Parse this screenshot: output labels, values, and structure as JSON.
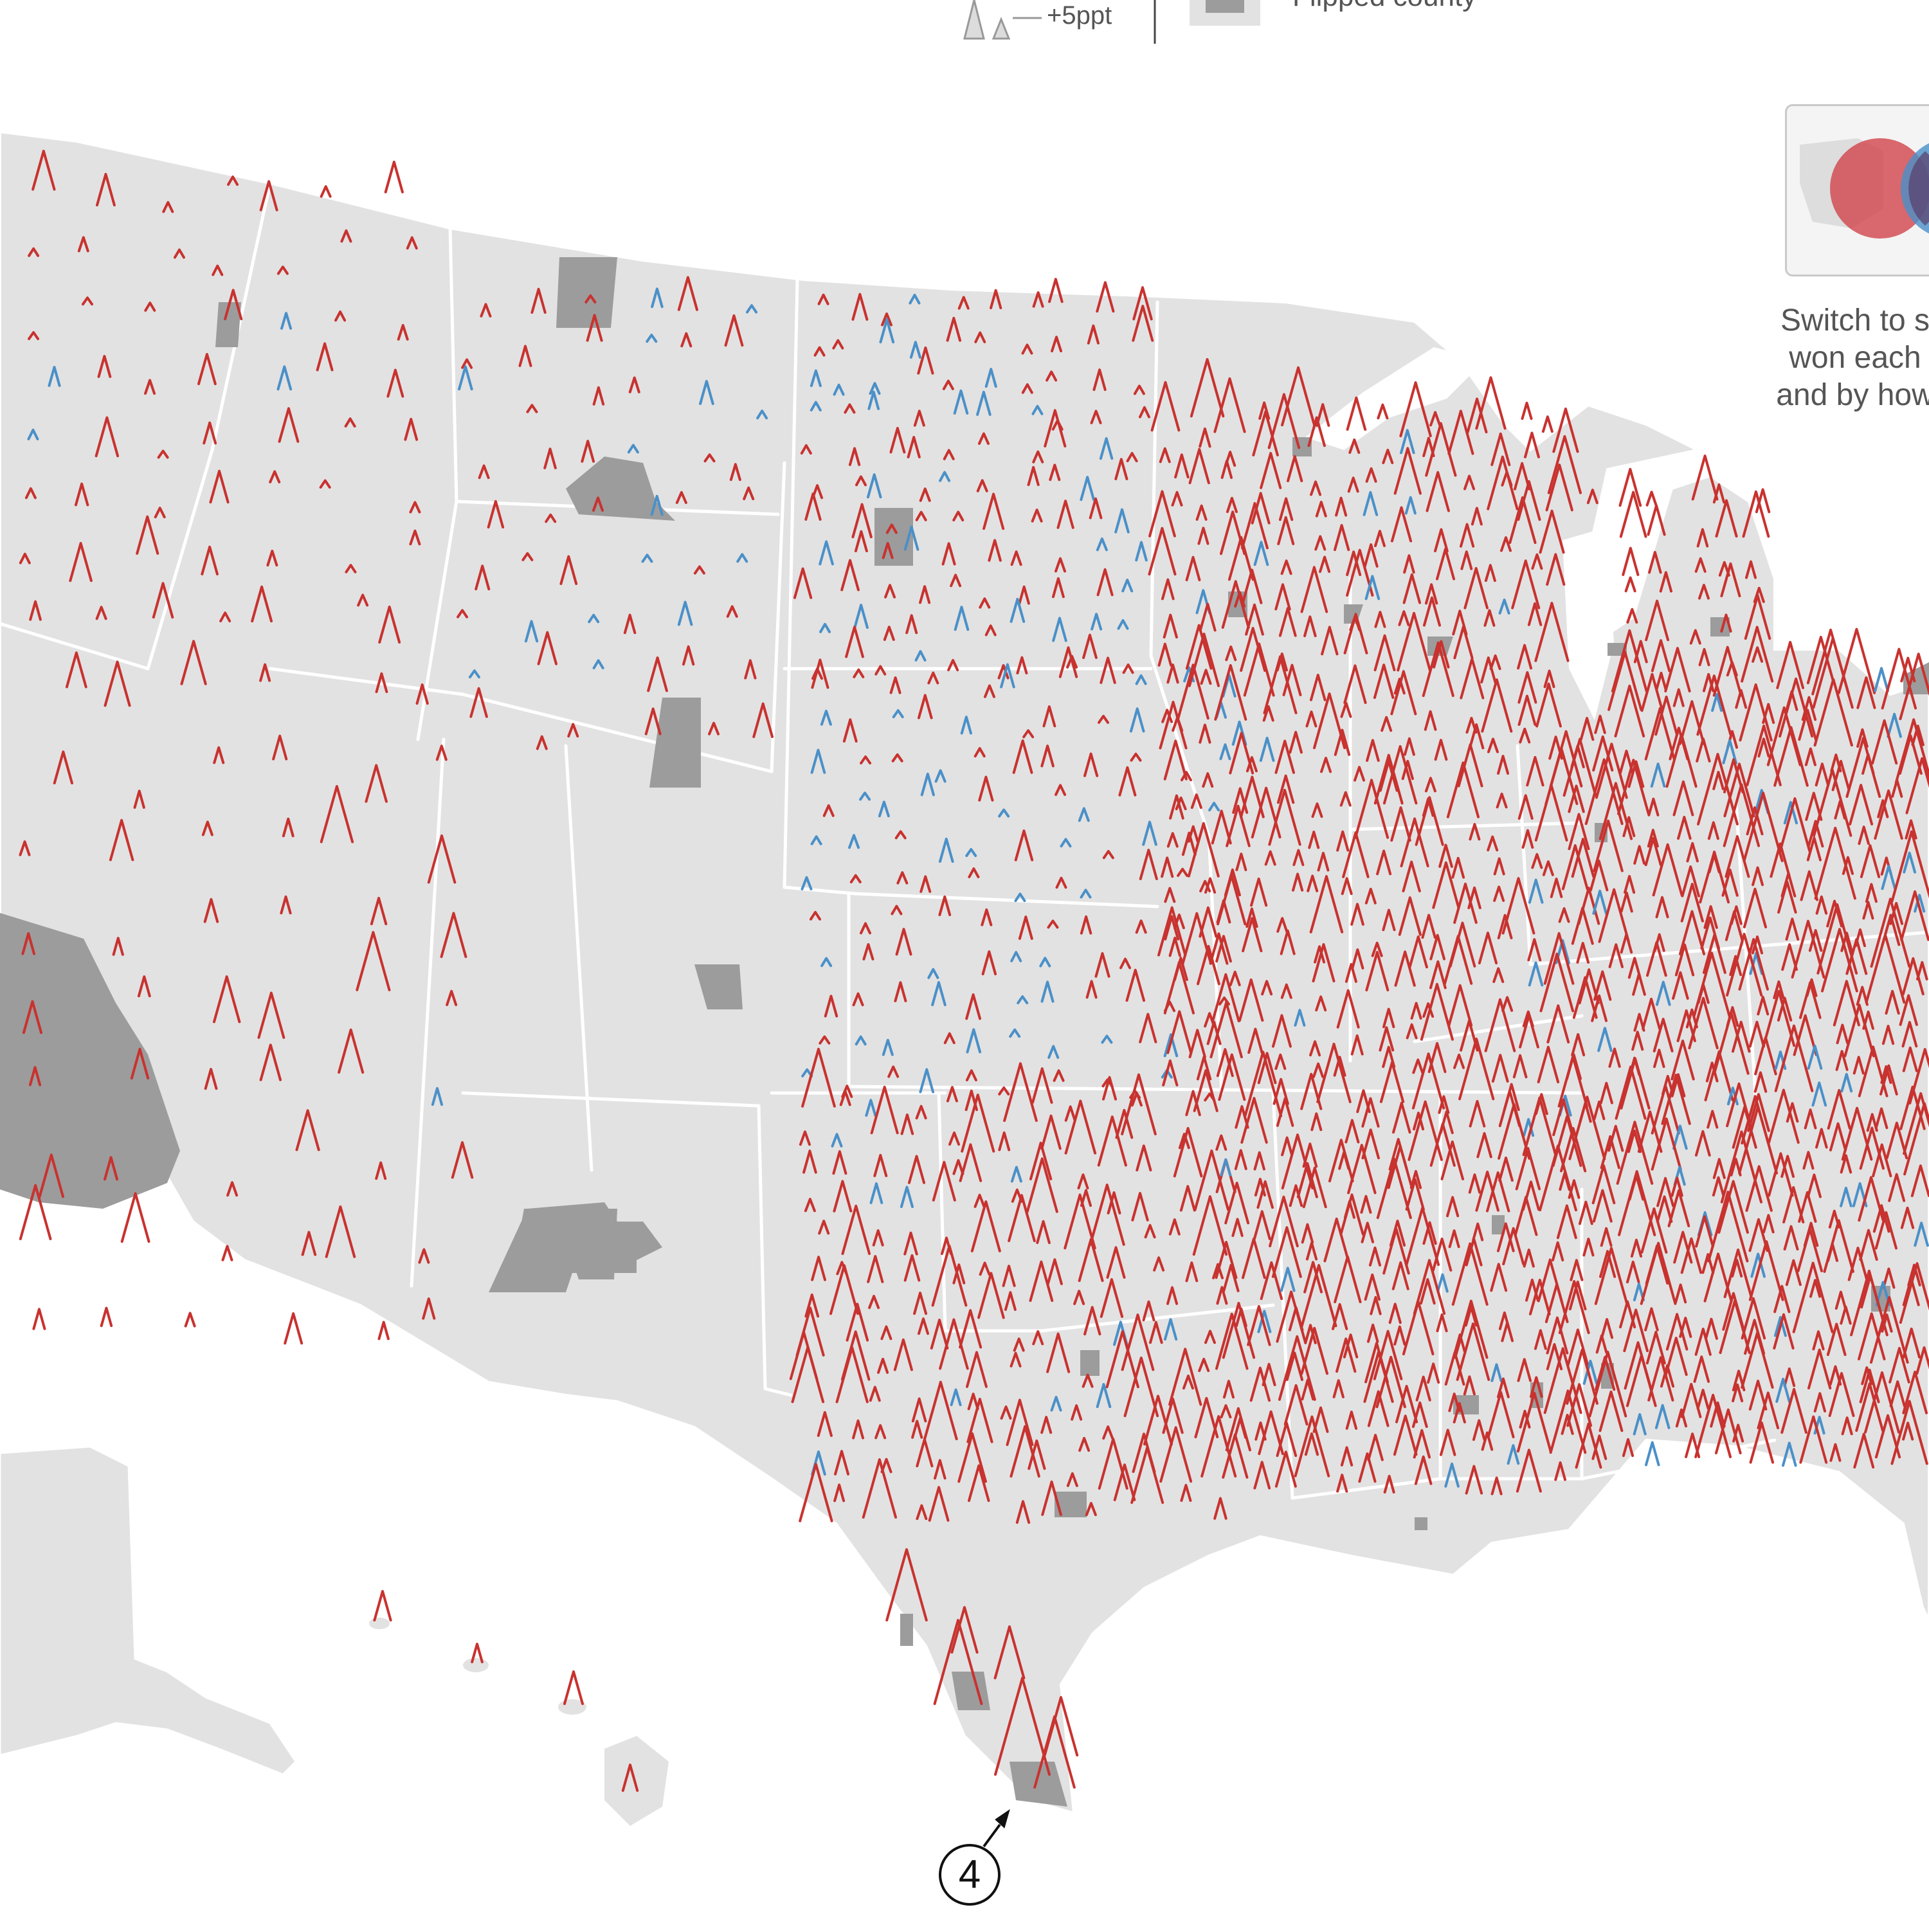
{
  "legend": {
    "shift_label": "+5ppt",
    "flipped_label": "Flipped county"
  },
  "toggle": {
    "text_lines": [
      "Switch to s",
      "won each",
      "and by how"
    ]
  },
  "annotation": {
    "number": "4"
  },
  "colors": {
    "background": "#ffffff",
    "county_fill": "#e2e2e2",
    "county_border": "#ffffff",
    "flipped_fill": "#9c9c9c",
    "republican_shift": "#c8322f",
    "democratic_shift": "#4a90c8",
    "text": "#555555"
  },
  "map": {
    "regions": [
      "contiguous-us",
      "alaska",
      "hawaii"
    ],
    "marker_meaning": "county vote shift arrows: red = shift toward Republicans, blue = shift toward Democrats"
  }
}
